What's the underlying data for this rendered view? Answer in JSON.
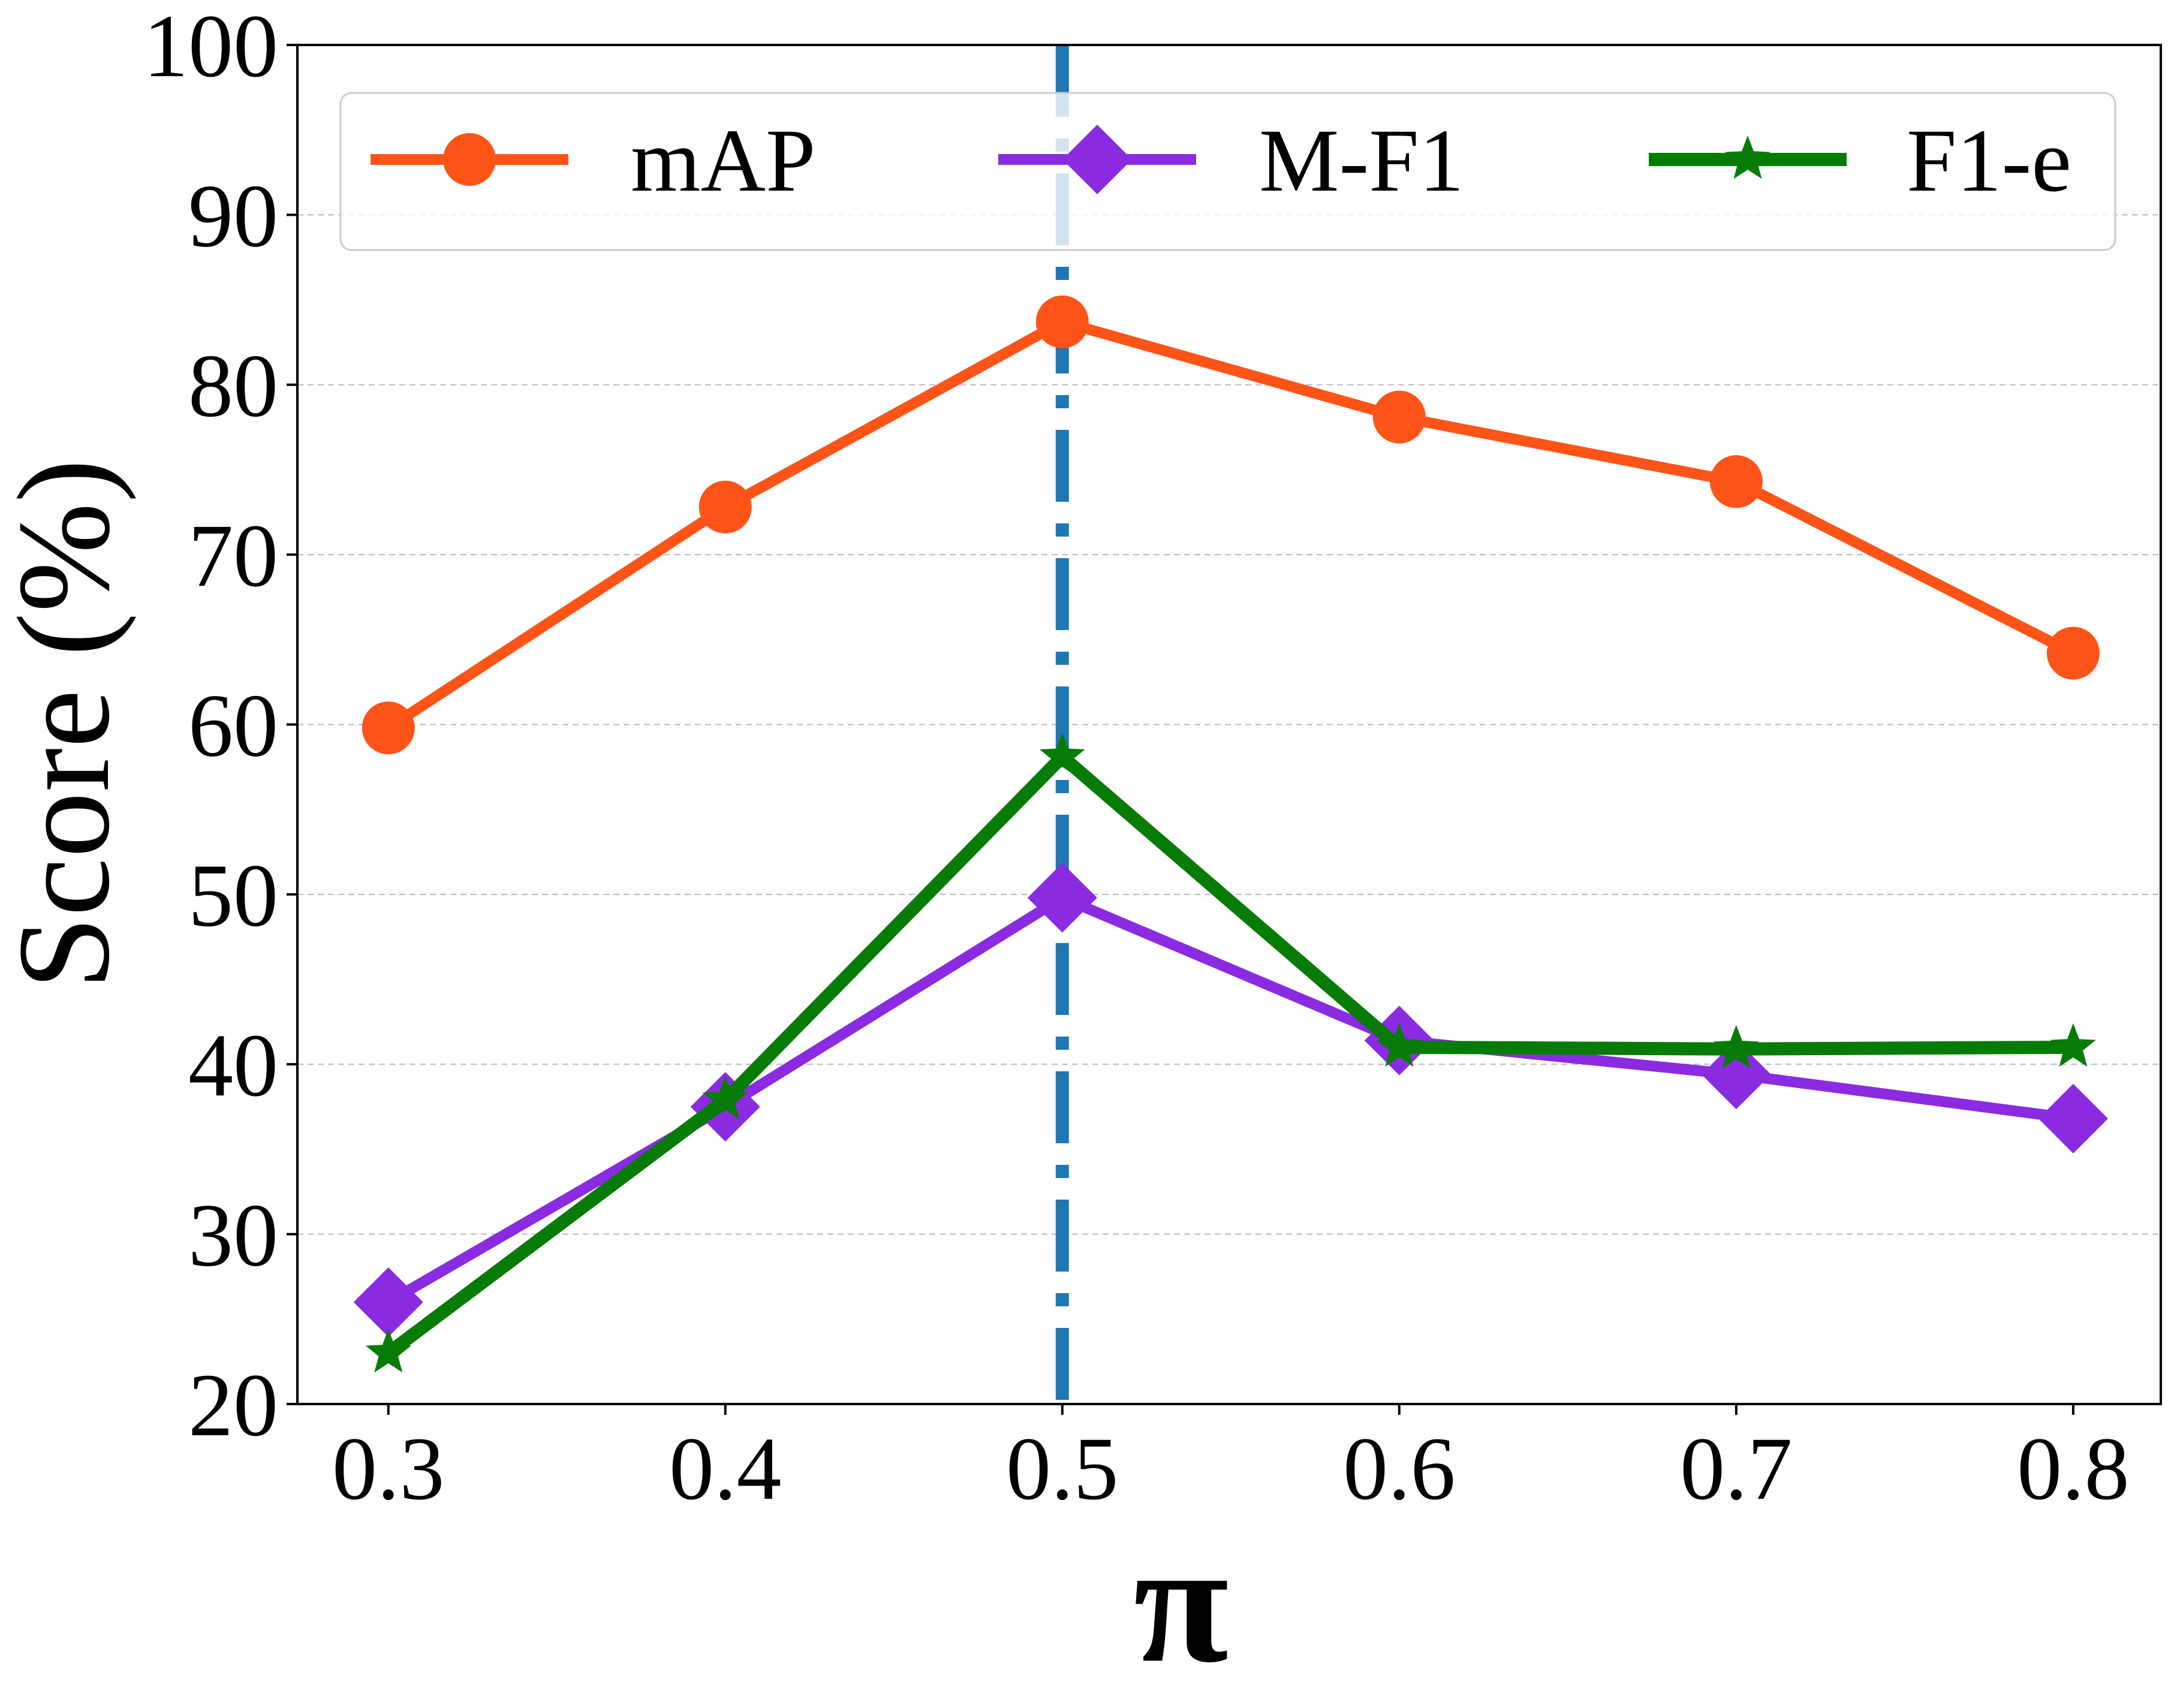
{
  "chart_data": {
    "type": "line",
    "title": "",
    "xlabel": "π",
    "ylabel": "Score (%)",
    "x": [
      0.3,
      0.4,
      0.5,
      0.6,
      0.7,
      0.8
    ],
    "x_tick_labels": [
      "0.3",
      "0.4",
      "0.5",
      "0.6",
      "0.7",
      "0.8"
    ],
    "y_tick_labels": [
      "20",
      "30",
      "40",
      "50",
      "60",
      "70",
      "80",
      "90",
      "100"
    ],
    "xlim": [
      0.273,
      0.826
    ],
    "ylim": [
      20,
      100
    ],
    "grid": "y-dashed",
    "legend_position": "top",
    "reference_line": {
      "orientation": "vertical",
      "x": 0.5,
      "style": "dash-dot",
      "color": "#1f77b4"
    },
    "series": [
      {
        "name": "mAP",
        "marker": "circle",
        "color": "#ff5417",
        "values": [
          59.8,
          72.8,
          83.7,
          78.1,
          74.3,
          64.2
        ]
      },
      {
        "name": "M-F1",
        "marker": "diamond",
        "color": "#8a2be2",
        "values": [
          26.0,
          37.5,
          49.8,
          41.4,
          39.4,
          36.8
        ]
      },
      {
        "name": "F1-e",
        "marker": "star",
        "color": "#067c06",
        "values": [
          23.0,
          37.9,
          58.1,
          41.0,
          40.9,
          41.0
        ]
      }
    ]
  }
}
